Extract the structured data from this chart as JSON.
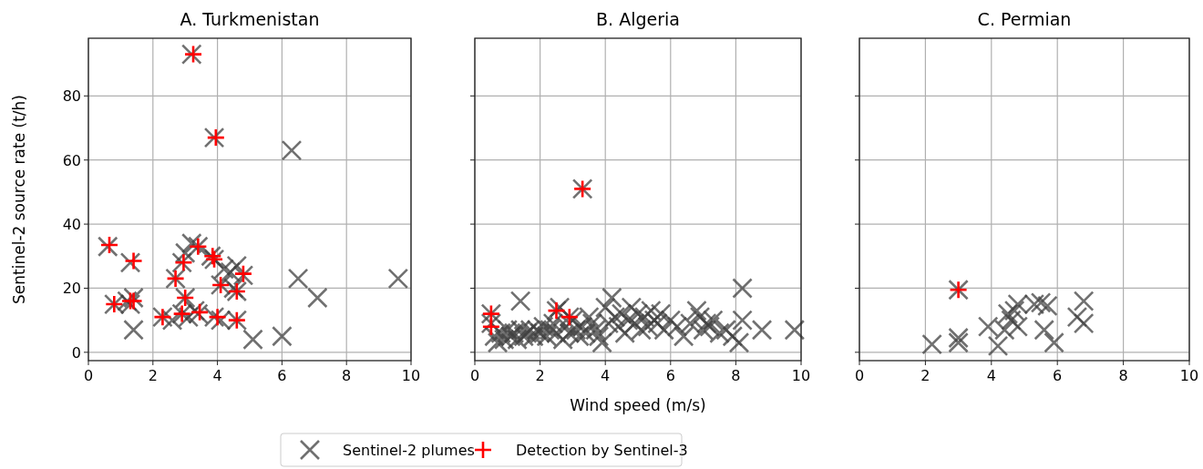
{
  "chart_data": [
    {
      "type": "scatter",
      "title": "A. Turkmenistan",
      "ylabel": "Sentinel-2 source rate (t/h)",
      "xlim": [
        0,
        10
      ],
      "ylim": [
        -2.6,
        98
      ],
      "xticks": [
        0,
        2,
        4,
        6,
        8,
        10
      ],
      "yticks": [
        0,
        20,
        40,
        60,
        80
      ],
      "grid": true,
      "legend": "bottom",
      "series": [
        {
          "name": "Sentinel-2 plumes",
          "color": "#404040",
          "marker": "cross",
          "x": [
            0.6,
            1.3,
            0.8,
            1.2,
            1.3,
            1.4,
            1.4,
            2.3,
            2.7,
            2.9,
            3.0,
            3.2,
            3.4,
            3.8,
            3.9,
            4.2,
            4.4,
            4.6,
            4.8,
            4.1,
            4.5,
            4.6,
            3.0,
            2.9,
            3.1,
            3.4,
            3.9,
            4.1,
            4.6,
            5.1,
            6.0,
            6.5,
            7.1,
            9.6,
            3.2,
            3.9,
            6.3,
            2.6,
            3.3
          ],
          "values": [
            33,
            28,
            15,
            16,
            15,
            17,
            7,
            11,
            23,
            28,
            31,
            34,
            33,
            30,
            29,
            26,
            25,
            27,
            24,
            21,
            20,
            19,
            17,
            12,
            11,
            12,
            11,
            10,
            10,
            4,
            5,
            23,
            17,
            23,
            93,
            67,
            63,
            10,
            13
          ]
        },
        {
          "name": "Detection by Sentinel-3",
          "color": "#ff0000",
          "marker": "cross",
          "x": [
            3.25,
            3.95,
            0.65,
            1.4,
            0.8,
            1.3,
            1.4,
            2.3,
            2.7,
            2.95,
            3.0,
            2.9,
            3.4,
            3.85,
            3.9,
            3.45,
            4.0,
            4.1,
            4.6,
            4.8,
            4.6
          ],
          "values": [
            93,
            67,
            33.5,
            28.5,
            15,
            16,
            16,
            11,
            23,
            28,
            17,
            12,
            33,
            30,
            29,
            12.5,
            11,
            21,
            19,
            24.5,
            10
          ]
        }
      ]
    },
    {
      "type": "scatter",
      "title": "B. Algeria",
      "xlabel": "Wind speed (m/s)",
      "xlim": [
        0,
        10
      ],
      "ylim": [
        -2.6,
        98
      ],
      "xticks": [
        0,
        2,
        4,
        6,
        8,
        10
      ],
      "yticks": [
        0,
        20,
        40,
        60,
        80
      ],
      "grid": true,
      "tick_labels": "x",
      "series": [
        {
          "color": "#404040",
          "marker": "cross",
          "x": [
            0.5,
            0.6,
            0.7,
            0.8,
            0.9,
            1.0,
            1.1,
            1.2,
            1.3,
            1.4,
            1.4,
            1.5,
            1.6,
            1.7,
            1.8,
            1.9,
            2.0,
            2.1,
            2.2,
            2.3,
            2.4,
            2.5,
            2.6,
            2.7,
            2.8,
            2.9,
            3.0,
            3.1,
            3.2,
            3.3,
            3.4,
            3.5,
            3.6,
            3.7,
            3.8,
            3.9,
            4.0,
            4.1,
            4.2,
            4.3,
            4.4,
            4.5,
            4.6,
            4.7,
            4.8,
            4.9,
            5.0,
            5.1,
            5.2,
            5.3,
            5.4,
            5.5,
            5.6,
            5.7,
            5.8,
            6.0,
            6.2,
            6.4,
            6.6,
            6.8,
            6.9,
            7.0,
            7.1,
            7.2,
            7.3,
            7.5,
            7.7,
            7.9,
            8.1,
            8.2,
            8.2,
            8.8,
            9.8,
            3.3,
            0.5,
            2.5,
            2.9
          ],
          "values": [
            9,
            5,
            3,
            6,
            4,
            7,
            5,
            6,
            4,
            7,
            16,
            5,
            6,
            7,
            5,
            7,
            6,
            8,
            5,
            7,
            9,
            6,
            14,
            4,
            8,
            6,
            10,
            7,
            5,
            8,
            6,
            11,
            9,
            7,
            5,
            3,
            14,
            9,
            17,
            11,
            8,
            12,
            6,
            10,
            14,
            9,
            12,
            7,
            11,
            8,
            13,
            10,
            9,
            12,
            7,
            10,
            8,
            5,
            9,
            13,
            11,
            7,
            9,
            8,
            10,
            6,
            7,
            5,
            3,
            20,
            10,
            7,
            7,
            51,
            12,
            13,
            11
          ]
        },
        {
          "color": "#ff0000",
          "marker": "cross",
          "x": [
            0.5,
            0.5,
            3.3,
            2.5,
            2.9
          ],
          "values": [
            12,
            8,
            51,
            13,
            11
          ]
        }
      ]
    },
    {
      "type": "scatter",
      "title": "C. Permian",
      "xlim": [
        0,
        10
      ],
      "ylim": [
        -2.6,
        98
      ],
      "xticks": [
        0,
        2,
        4,
        6,
        8,
        10
      ],
      "yticks": [
        0,
        20,
        40,
        60,
        80
      ],
      "grid": true,
      "tick_labels": "x",
      "series": [
        {
          "color": "#404040",
          "marker": "cross",
          "x": [
            3.0,
            2.2,
            3.0,
            3.0,
            3.9,
            4.2,
            4.4,
            4.6,
            4.7,
            4.8,
            4.8,
            5.3,
            5.5,
            5.7,
            5.6,
            5.9,
            6.6,
            6.8,
            6.8,
            4.5
          ],
          "values": [
            19.5,
            2.5,
            3,
            4.5,
            8,
            2,
            7,
            10,
            13,
            15,
            8,
            15,
            15.5,
            14.5,
            7,
            3,
            11,
            16,
            9,
            12
          ]
        },
        {
          "color": "#ff0000",
          "marker": "cross",
          "x": [
            3.0
          ],
          "values": [
            19.5
          ]
        }
      ]
    }
  ]
}
